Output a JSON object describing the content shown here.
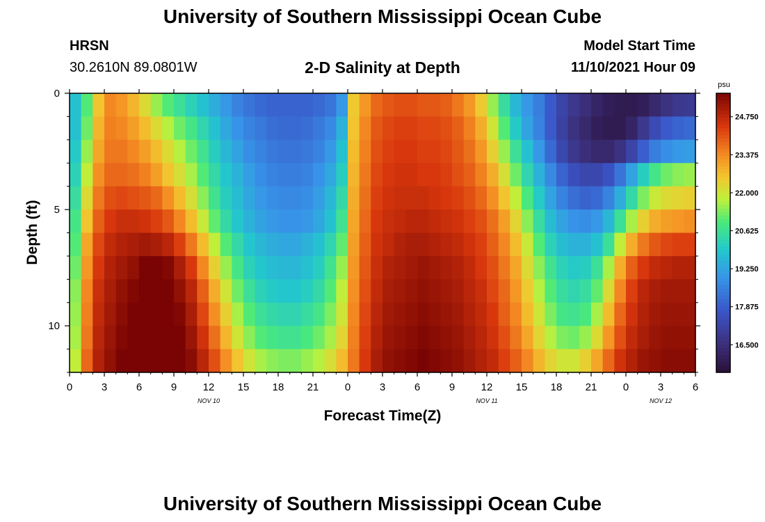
{
  "page": {
    "title_top": "University of Southern Mississippi Ocean Cube",
    "title_bottom": "University of Southern Mississippi Ocean Cube"
  },
  "header": {
    "station": "HRSN",
    "coords": "30.2610N  89.0801W",
    "plot_title": "2-D Salinity at Depth",
    "model_start_label": "Model Start Time",
    "model_start_value": "11/10/2021 Hour 09"
  },
  "chart_data": {
    "type": "heatmap",
    "title": "2-D Salinity at Depth",
    "xlabel": "Forecast Time(Z)",
    "ylabel": "Depth (ft)",
    "colorbar_unit": "psu",
    "x_range_hours": [
      0,
      54
    ],
    "y_range_ft": [
      0,
      12
    ],
    "x_ticks": [
      "0",
      "3",
      "6",
      "9",
      "12",
      "15",
      "18",
      "21",
      "0",
      "3",
      "6",
      "9",
      "12",
      "15",
      "18",
      "21",
      "0",
      "3",
      "6"
    ],
    "y_ticks": [
      "0",
      "5",
      "10"
    ],
    "y_tick_values": [
      0,
      5,
      10
    ],
    "date_labels": [
      {
        "text": "NOV 10",
        "hour": 12
      },
      {
        "text": "NOV 11",
        "hour": 36
      },
      {
        "text": "NOV 12",
        "hour": 51
      }
    ],
    "colorbar_ticks": [
      "24.750",
      "23.375",
      "22.000",
      "20.625",
      "19.250",
      "17.875",
      "16.500"
    ],
    "colorbar_values": [
      24.75,
      23.375,
      22.0,
      20.625,
      19.25,
      17.875,
      16.5
    ],
    "colorbar_range": [
      15.5,
      25.6
    ],
    "depth_levels_ft": [
      0,
      1,
      2,
      3,
      4,
      5,
      6,
      7,
      8,
      9,
      10,
      11
    ],
    "time_hours": [
      0,
      1,
      2,
      3,
      4,
      5,
      6,
      7,
      8,
      9,
      10,
      11,
      12,
      13,
      14,
      15,
      16,
      17,
      18,
      19,
      20,
      21,
      22,
      23,
      24,
      25,
      26,
      27,
      28,
      29,
      30,
      31,
      32,
      33,
      34,
      35,
      36,
      37,
      38,
      39,
      40,
      41,
      42,
      43,
      44,
      45,
      46,
      47,
      48,
      49,
      50,
      51,
      52,
      53
    ],
    "salinity_psu": [
      [
        19.8,
        21.0,
        22.6,
        23.4,
        23.2,
        22.8,
        22.2,
        21.5,
        21.0,
        20.6,
        20.2,
        19.8,
        19.4,
        19.0,
        18.6,
        18.3,
        18.1,
        18.0,
        18.0,
        18.0,
        18.0,
        18.1,
        18.3,
        19.0,
        22.5,
        23.2,
        23.8,
        24.0,
        24.1,
        24.1,
        24.0,
        24.0,
        23.9,
        23.6,
        23.2,
        22.5,
        21.5,
        20.5,
        19.6,
        19.0,
        18.5,
        17.8,
        17.2,
        16.8,
        16.5,
        16.2,
        16.0,
        15.9,
        15.9,
        16.0,
        16.3,
        16.6,
        16.8,
        16.9
      ],
      [
        19.8,
        21.2,
        22.8,
        23.5,
        23.4,
        23.1,
        22.7,
        22.2,
        21.7,
        21.2,
        20.8,
        20.3,
        19.8,
        19.3,
        18.9,
        18.6,
        18.4,
        18.2,
        18.1,
        18.1,
        18.2,
        18.4,
        18.7,
        19.5,
        22.6,
        23.4,
        24.0,
        24.2,
        24.3,
        24.3,
        24.2,
        24.2,
        24.1,
        23.9,
        23.5,
        22.9,
        22.0,
        21.0,
        20.0,
        19.2,
        18.6,
        17.8,
        17.1,
        16.6,
        16.3,
        16.0,
        15.9,
        15.9,
        16.2,
        16.8,
        17.4,
        17.8,
        18.0,
        18.1
      ],
      [
        20.0,
        21.5,
        23.0,
        23.6,
        23.6,
        23.4,
        23.1,
        22.7,
        22.2,
        21.7,
        21.2,
        20.7,
        20.1,
        19.6,
        19.2,
        18.8,
        18.6,
        18.4,
        18.3,
        18.3,
        18.4,
        18.6,
        19.0,
        19.8,
        22.7,
        23.5,
        24.1,
        24.3,
        24.4,
        24.4,
        24.3,
        24.3,
        24.2,
        24.0,
        23.7,
        23.2,
        22.4,
        21.5,
        20.6,
        19.8,
        19.0,
        18.1,
        17.3,
        16.8,
        16.5,
        16.3,
        16.3,
        16.6,
        17.2,
        17.9,
        18.5,
        18.8,
        19.0,
        19.1
      ],
      [
        20.2,
        21.8,
        23.3,
        23.8,
        23.8,
        23.7,
        23.5,
        23.1,
        22.6,
        22.1,
        21.6,
        21.0,
        20.4,
        19.9,
        19.5,
        19.1,
        18.8,
        18.6,
        18.5,
        18.5,
        18.6,
        18.9,
        19.3,
        20.1,
        22.8,
        23.6,
        24.2,
        24.4,
        24.5,
        24.5,
        24.4,
        24.4,
        24.3,
        24.1,
        23.9,
        23.5,
        22.9,
        22.1,
        21.2,
        20.3,
        19.5,
        18.7,
        18.0,
        17.5,
        17.3,
        17.3,
        17.6,
        18.3,
        19.2,
        20.1,
        20.8,
        21.2,
        21.4,
        21.5
      ],
      [
        20.5,
        22.2,
        23.6,
        24.1,
        24.2,
        24.1,
        24.0,
        23.8,
        23.3,
        22.7,
        22.1,
        21.4,
        20.7,
        20.1,
        19.7,
        19.3,
        19.0,
        18.8,
        18.7,
        18.7,
        18.8,
        19.1,
        19.6,
        20.4,
        22.9,
        23.7,
        24.3,
        24.5,
        24.6,
        24.6,
        24.6,
        24.5,
        24.4,
        24.3,
        24.1,
        23.8,
        23.3,
        22.6,
        21.8,
        20.9,
        20.0,
        19.2,
        18.6,
        18.2,
        18.0,
        18.1,
        18.6,
        19.4,
        20.4,
        21.3,
        21.9,
        22.2,
        22.3,
        22.4
      ],
      [
        20.8,
        22.6,
        23.9,
        24.4,
        24.6,
        24.6,
        24.5,
        24.3,
        24.0,
        23.4,
        22.7,
        21.9,
        21.1,
        20.4,
        19.9,
        19.5,
        19.2,
        19.0,
        18.9,
        18.9,
        19.0,
        19.3,
        19.8,
        20.7,
        23.0,
        23.8,
        24.4,
        24.6,
        24.7,
        24.8,
        24.8,
        24.7,
        24.6,
        24.5,
        24.3,
        24.1,
        23.7,
        23.1,
        22.3,
        21.4,
        20.5,
        19.7,
        19.2,
        18.9,
        18.8,
        19.0,
        19.6,
        20.6,
        21.6,
        22.4,
        22.9,
        23.1,
        23.2,
        23.3
      ],
      [
        21.0,
        23.0,
        24.2,
        24.7,
        24.9,
        25.0,
        25.1,
        25.0,
        24.8,
        24.3,
        23.6,
        22.7,
        21.8,
        21.0,
        20.4,
        19.9,
        19.6,
        19.4,
        19.3,
        19.3,
        19.5,
        19.8,
        20.3,
        21.1,
        23.1,
        23.9,
        24.5,
        24.7,
        24.9,
        25.0,
        25.0,
        24.9,
        24.8,
        24.7,
        24.5,
        24.3,
        23.9,
        23.4,
        22.7,
        21.9,
        21.0,
        20.2,
        19.7,
        19.5,
        19.5,
        19.8,
        20.6,
        21.8,
        22.9,
        23.6,
        24.0,
        24.2,
        24.3,
        24.3
      ],
      [
        21.2,
        23.2,
        24.4,
        24.9,
        25.1,
        25.3,
        25.6,
        25.6,
        25.5,
        25.0,
        24.4,
        23.4,
        22.4,
        21.5,
        20.8,
        20.2,
        19.9,
        19.7,
        19.6,
        19.6,
        19.8,
        20.1,
        20.7,
        21.5,
        23.2,
        24.0,
        24.6,
        24.9,
        25.0,
        25.1,
        25.2,
        25.1,
        25.0,
        24.9,
        24.7,
        24.4,
        24.1,
        23.6,
        23.0,
        22.2,
        21.4,
        20.7,
        20.2,
        20.0,
        20.1,
        20.6,
        21.6,
        22.9,
        23.9,
        24.4,
        24.7,
        24.8,
        24.9,
        24.9
      ],
      [
        21.4,
        23.4,
        24.6,
        25.0,
        25.3,
        25.5,
        25.8,
        25.8,
        25.7,
        25.3,
        24.8,
        23.9,
        22.9,
        22.0,
        21.2,
        20.6,
        20.2,
        20.0,
        19.9,
        19.9,
        20.1,
        20.4,
        21.0,
        21.8,
        23.3,
        24.1,
        24.7,
        25.0,
        25.1,
        25.2,
        25.3,
        25.2,
        25.1,
        25.0,
        24.8,
        24.6,
        24.2,
        23.8,
        23.2,
        22.5,
        21.7,
        21.0,
        20.5,
        20.3,
        20.5,
        21.1,
        22.2,
        23.4,
        24.3,
        24.8,
        25.0,
        25.1,
        25.1,
        25.1
      ],
      [
        21.5,
        23.5,
        24.7,
        25.1,
        25.4,
        25.6,
        25.9,
        25.9,
        25.8,
        25.5,
        25.0,
        24.2,
        23.3,
        22.4,
        21.6,
        21.0,
        20.6,
        20.4,
        20.3,
        20.3,
        20.5,
        20.8,
        21.3,
        22.0,
        23.4,
        24.2,
        24.8,
        25.1,
        25.2,
        25.3,
        25.4,
        25.3,
        25.2,
        25.1,
        24.9,
        24.7,
        24.4,
        23.9,
        23.4,
        22.7,
        22.0,
        21.3,
        20.8,
        20.7,
        20.9,
        21.6,
        22.7,
        23.8,
        24.5,
        24.9,
        25.1,
        25.2,
        25.2,
        25.2
      ],
      [
        21.6,
        23.6,
        24.8,
        25.2,
        25.5,
        25.7,
        26.0,
        26.0,
        25.9,
        25.6,
        25.2,
        24.5,
        23.7,
        22.8,
        22.0,
        21.4,
        21.0,
        20.8,
        20.7,
        20.7,
        20.9,
        21.2,
        21.6,
        22.3,
        23.5,
        24.3,
        24.9,
        25.2,
        25.3,
        25.4,
        25.5,
        25.4,
        25.3,
        25.2,
        25.0,
        24.8,
        24.5,
        24.1,
        23.6,
        23.0,
        22.3,
        21.7,
        21.3,
        21.2,
        21.5,
        22.2,
        23.2,
        24.1,
        24.7,
        25.0,
        25.2,
        25.3,
        25.3,
        25.3
      ],
      [
        21.8,
        23.8,
        24.9,
        25.3,
        25.6,
        25.8,
        26.1,
        26.1,
        26.0,
        25.8,
        25.4,
        24.8,
        24.1,
        23.3,
        22.6,
        22.0,
        21.6,
        21.4,
        21.3,
        21.3,
        21.5,
        21.7,
        22.1,
        22.7,
        23.6,
        24.4,
        25.0,
        25.3,
        25.4,
        25.5,
        25.6,
        25.5,
        25.4,
        25.3,
        25.1,
        24.9,
        24.7,
        24.3,
        23.9,
        23.4,
        22.8,
        22.3,
        22.0,
        22.0,
        22.4,
        23.0,
        23.8,
        24.5,
        24.9,
        25.2,
        25.3,
        25.4,
        25.4,
        25.4
      ]
    ]
  }
}
